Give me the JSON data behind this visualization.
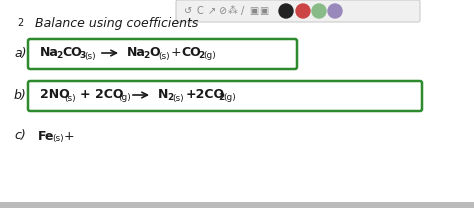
{
  "bg_color": "#ffffff",
  "outer_bg": "#d8d8d8",
  "toolbar_bg": "#f0f0f0",
  "toolbar_border": "#cccccc",
  "box_color": "#2d8a2d",
  "text_color": "#1a1a1a",
  "title_num": "2",
  "title_text": "Balance using coefficients",
  "label_a": "a)",
  "label_b": "b)",
  "label_c": "c)",
  "circle_colors": [
    "#cc4444",
    "#88bb88",
    "#9988bb"
  ],
  "dark_circle_color": "#222222"
}
